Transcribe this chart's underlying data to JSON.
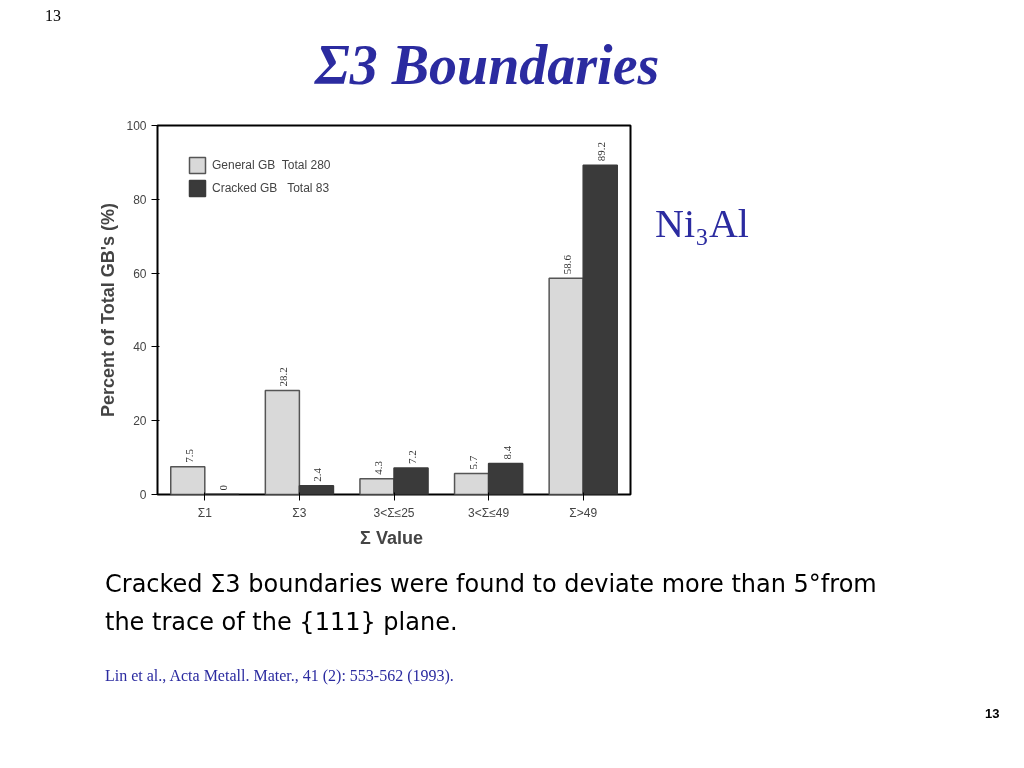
{
  "chart_data": {
    "type": "bar",
    "title": "Σ3 Boundaries",
    "xlabel": "Σ  Value",
    "ylabel": "Percent of Total GB's (%)",
    "categories": [
      "Σ1",
      "Σ3",
      "3<Σ≤25",
      "3<Σ≤49",
      "Σ>49"
    ],
    "series": [
      {
        "name": "General GB  Total 280",
        "color": "#d9d9d9",
        "values": [
          7.5,
          28.2,
          4.3,
          5.7,
          58.6
        ]
      },
      {
        "name": "Cracked GB   Total 83",
        "color": "#3a3a3a",
        "values": [
          0,
          2.4,
          7.2,
          8.4,
          89.2
        ]
      }
    ],
    "ylim": [
      0,
      100
    ],
    "yticks": [
      0,
      20,
      40,
      60,
      80,
      100
    ],
    "grid": false,
    "legend": "top left",
    "data_labels": true,
    "annotations": [
      "Ni₃Al",
      "Cracked Σ3 boundaries were found to deviate more than 5°from the trace of the {111} plane.",
      "Lin et al., Acta Metall. Mater., 41 (2):  553-562 (1993).",
      "13",
      "13"
    ]
  }
}
